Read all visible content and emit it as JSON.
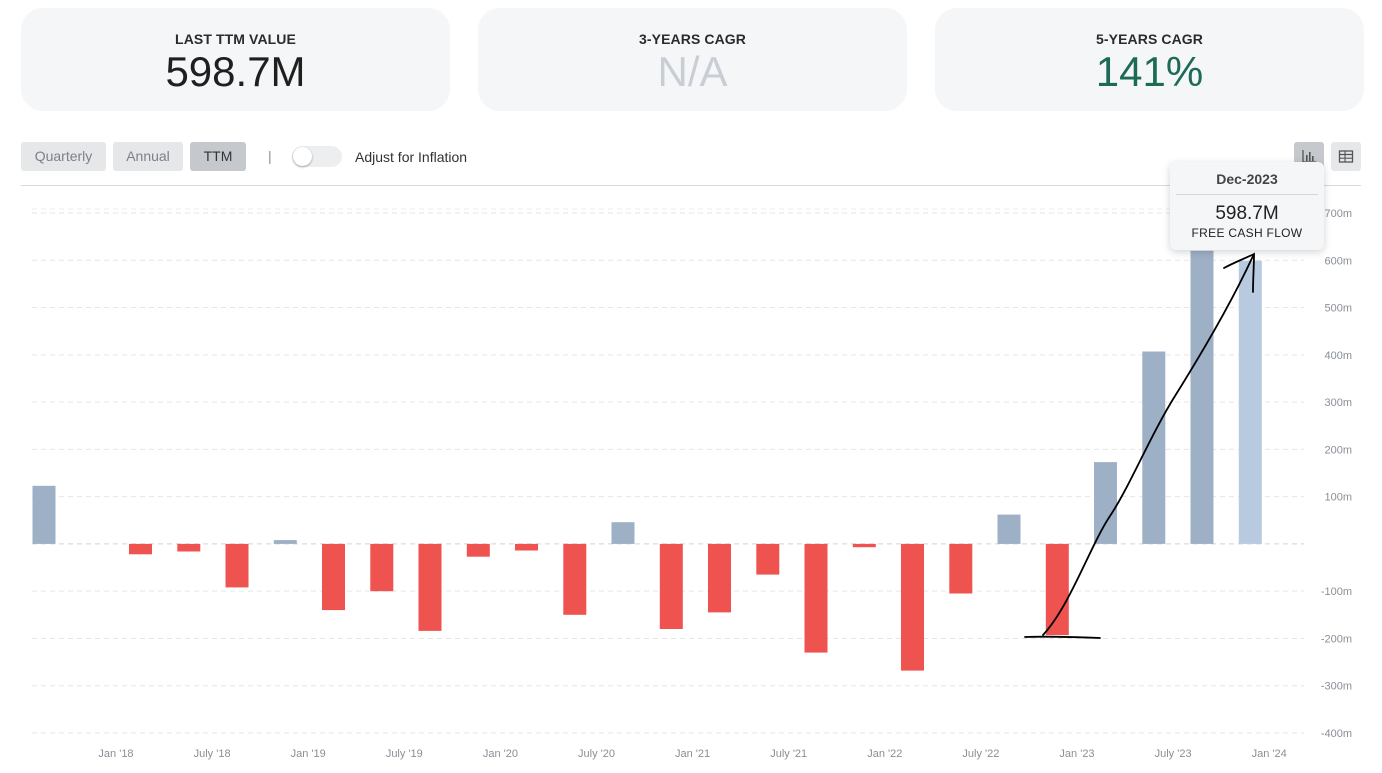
{
  "stats": [
    {
      "label": "LAST TTM VALUE",
      "value": "598.7M",
      "color": "#1f1f1f"
    },
    {
      "label": "3-YEARS CAGR",
      "value": "N/A",
      "color": "#c9ced6"
    },
    {
      "label": "5-YEARS CAGR",
      "value": "141%",
      "color": "#1d6b57"
    }
  ],
  "toolbar": {
    "periods": [
      "Quarterly",
      "Annual",
      "TTM"
    ],
    "active_period": "TTM",
    "divider": "|",
    "inflation_label": "Adjust for Inflation",
    "inflation_enabled": false
  },
  "view_icons": [
    "bar-chart-icon",
    "table-icon"
  ],
  "tooltip": {
    "date": "Dec-2023",
    "value": "598.7M",
    "series": "FREE CASH FLOW"
  },
  "chart_data": {
    "type": "bar",
    "x": [
      "2017-09",
      "2017-12",
      "2018-03",
      "2018-06",
      "2018-09",
      "2018-12",
      "2019-03",
      "2019-06",
      "2019-09",
      "2019-12",
      "2020-03",
      "2020-06",
      "2020-09",
      "2020-12",
      "2021-03",
      "2021-06",
      "2021-09",
      "2021-12",
      "2022-03",
      "2022-06",
      "2022-09",
      "2022-12",
      "2023-03",
      "2023-06",
      "2023-09",
      "2023-12"
    ],
    "values": [
      123,
      0,
      -22,
      -16,
      -92,
      8,
      -140,
      -100,
      -184,
      -27,
      -14,
      -150,
      46,
      -180,
      -145,
      -65,
      -230,
      -7,
      -268,
      -105,
      62,
      -193,
      173,
      407,
      620,
      599
    ],
    "highlight_index": 25,
    "x_ticks": [
      "Jan '18",
      "July '18",
      "Jan '19",
      "July '19",
      "Jan '20",
      "July '20",
      "Jan '21",
      "July '21",
      "Jan '22",
      "July '22",
      "Jan '23",
      "July '23",
      "Jan '24"
    ],
    "y_ticks": [
      "700m",
      "600m",
      "500m",
      "400m",
      "300m",
      "200m",
      "100m",
      "",
      "-100m",
      "-200m",
      "-300m",
      "-400m"
    ],
    "ylim": [
      -400,
      700
    ],
    "grid": true,
    "colors": {
      "positive": "#9eb0c6",
      "negative": "#ef5350",
      "highlight": "#b7cae0"
    }
  },
  "annotation": {
    "description": "hand-drawn arrow from Dec-2022 low to Dec-2023 high",
    "color": "#000000"
  }
}
